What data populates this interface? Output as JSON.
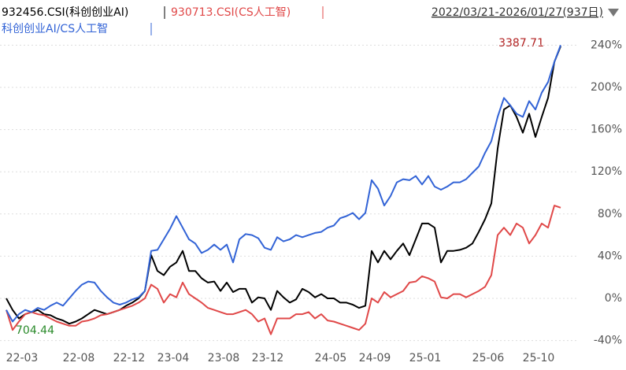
{
  "chart_data": {
    "type": "line",
    "title_series_note": null,
    "date_range": "2022/03/21-2026/01/27(937日)",
    "annotations": [
      "3387.71",
      "704.44"
    ],
    "categories": [
      null,
      null,
      "22-03",
      null,
      null,
      null,
      null,
      null,
      null,
      null,
      null,
      "22-08",
      null,
      null,
      null,
      null,
      null,
      null,
      null,
      "22-12",
      null,
      null,
      null,
      null,
      null,
      null,
      "23-04",
      null,
      null,
      null,
      null,
      null,
      null,
      null,
      "23-08",
      null,
      null,
      null,
      null,
      null,
      null,
      "23-12",
      null,
      null,
      null,
      null,
      null,
      null,
      null,
      null,
      null,
      "24-05",
      null,
      null,
      null,
      null,
      null,
      null,
      "24-09",
      null,
      null,
      null,
      null,
      null,
      null,
      null,
      "25-01",
      null,
      null,
      null,
      null,
      null,
      null,
      null,
      null,
      null,
      "25-06",
      null,
      null,
      null,
      null,
      null,
      null,
      null,
      "25-10",
      null,
      null,
      null,
      null
    ],
    "series": [
      {
        "name": "932456.CSI(科创创业AI)",
        "color": "#000000",
        "values": [
          0,
          -11,
          -19,
          -15,
          -13,
          -11,
          -15,
          -16,
          -19,
          -21,
          -24,
          -22,
          -19,
          -15,
          -11,
          -13,
          -15,
          -13,
          -11,
          -7,
          -4,
          0,
          7,
          41,
          26,
          22,
          30,
          34,
          45,
          26,
          26,
          19,
          15,
          16,
          7,
          15,
          6,
          9,
          9,
          -4,
          1,
          0,
          -11,
          7,
          1,
          -4,
          -1,
          9,
          6,
          1,
          4,
          0,
          0,
          -4,
          -4,
          -6,
          -9,
          -7,
          45,
          34,
          45,
          37,
          45,
          52,
          41,
          56,
          71,
          71,
          67,
          34,
          45,
          45,
          46,
          48,
          52,
          63,
          75,
          90,
          142,
          179,
          183,
          172,
          157,
          175,
          153,
          172,
          190,
          224,
          239
        ]
      },
      {
        "name": "930713.CSI(CS人工智)",
        "color": "#e04848",
        "values": [
          -11,
          -30,
          -22,
          -15,
          -13,
          -15,
          -16,
          -19,
          -22,
          -24,
          -26,
          -26,
          -22,
          -21,
          -19,
          -16,
          -15,
          -13,
          -11,
          -9,
          -7,
          -4,
          0,
          13,
          9,
          -4,
          4,
          1,
          15,
          4,
          0,
          -4,
          -9,
          -11,
          -13,
          -15,
          -15,
          -13,
          -11,
          -15,
          -22,
          -19,
          -34,
          -19,
          -19,
          -19,
          -15,
          -15,
          -13,
          -19,
          -15,
          -21,
          -22,
          -24,
          -26,
          -28,
          -30,
          -24,
          0,
          -4,
          6,
          1,
          4,
          7,
          15,
          16,
          21,
          19,
          16,
          1,
          0,
          4,
          4,
          1,
          4,
          7,
          11,
          22,
          60,
          67,
          60,
          71,
          67,
          52,
          60,
          71,
          67,
          88,
          86
        ]
      },
      {
        "name": "科创创业AI/CS人工智",
        "color": "#3263d6",
        "values": [
          -11,
          -22,
          -15,
          -11,
          -13,
          -9,
          -11,
          -7,
          -4,
          -7,
          0,
          7,
          13,
          16,
          15,
          7,
          1,
          -4,
          -6,
          -4,
          -1,
          1,
          7,
          45,
          46,
          56,
          66,
          78,
          67,
          56,
          52,
          43,
          46,
          51,
          46,
          51,
          34,
          56,
          61,
          60,
          57,
          48,
          46,
          58,
          54,
          56,
          60,
          58,
          60,
          62,
          63,
          67,
          69,
          76,
          78,
          81,
          75,
          81,
          112,
          104,
          88,
          97,
          110,
          113,
          112,
          116,
          108,
          116,
          106,
          103,
          106,
          110,
          110,
          113,
          119,
          125,
          138,
          149,
          172,
          190,
          183,
          175,
          172,
          187,
          179,
          195,
          205,
          224,
          240
        ]
      }
    ],
    "ylim": [
      -50,
      250
    ],
    "yticks": [
      {
        "value": -40,
        "label": "-40%"
      },
      {
        "value": 0,
        "label": "0%"
      },
      {
        "value": 40,
        "label": "40%"
      },
      {
        "value": 80,
        "label": "80%"
      },
      {
        "value": 120,
        "label": "120%"
      },
      {
        "value": 160,
        "label": "160%"
      },
      {
        "value": 200,
        "label": "200%"
      },
      {
        "value": 240,
        "label": "240%"
      }
    ],
    "grid": true
  }
}
